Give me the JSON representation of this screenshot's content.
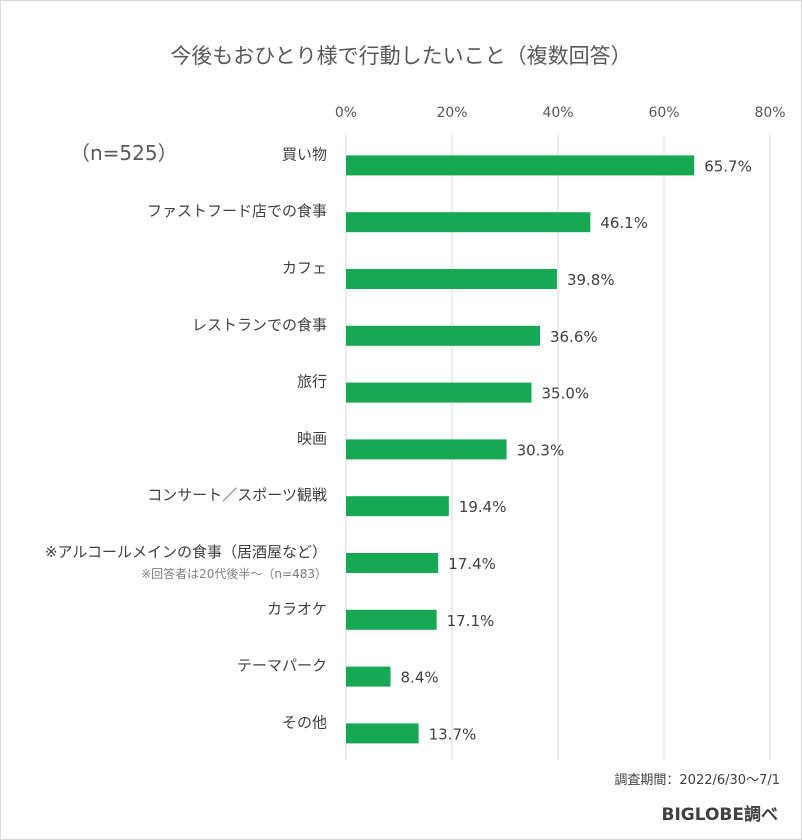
{
  "title": "今後もおひとり様で行動したいこと（複数回答）",
  "sample_label": "（n=525）",
  "period": "調査期間：2022/6/30～7/1",
  "source": "BIGLOBE調べ",
  "colors": {
    "bar": "#16a853",
    "grid": "#d9d9d9",
    "text": "#404040"
  },
  "chart_data": {
    "type": "bar",
    "orientation": "horizontal",
    "title": "今後もおひとり様で行動したいこと（複数回答）",
    "xlim": [
      0,
      80
    ],
    "x_ticks": [
      "0%",
      "20%",
      "40%",
      "60%",
      "80%"
    ],
    "grid": true,
    "categories": [
      "買い物",
      "ファストフード店での食事",
      "カフェ",
      "レストランでの食事",
      "旅行",
      "映画",
      "コンサート／スポーツ観戦",
      "※アルコールメインの食事（居酒屋など）",
      "カラオケ",
      "テーマパーク",
      "その他"
    ],
    "values": [
      65.7,
      46.1,
      39.8,
      36.6,
      35.0,
      30.3,
      19.4,
      17.4,
      17.1,
      8.4,
      13.7
    ],
    "value_labels": [
      "65.7%",
      "46.1%",
      "39.8%",
      "36.6%",
      "35.0%",
      "30.3%",
      "19.4%",
      "17.4%",
      "17.1%",
      "8.4%",
      "13.7%"
    ],
    "annotations": [
      {
        "category_index": 7,
        "text": "※回答者は20代後半～（n=483）"
      }
    ]
  }
}
